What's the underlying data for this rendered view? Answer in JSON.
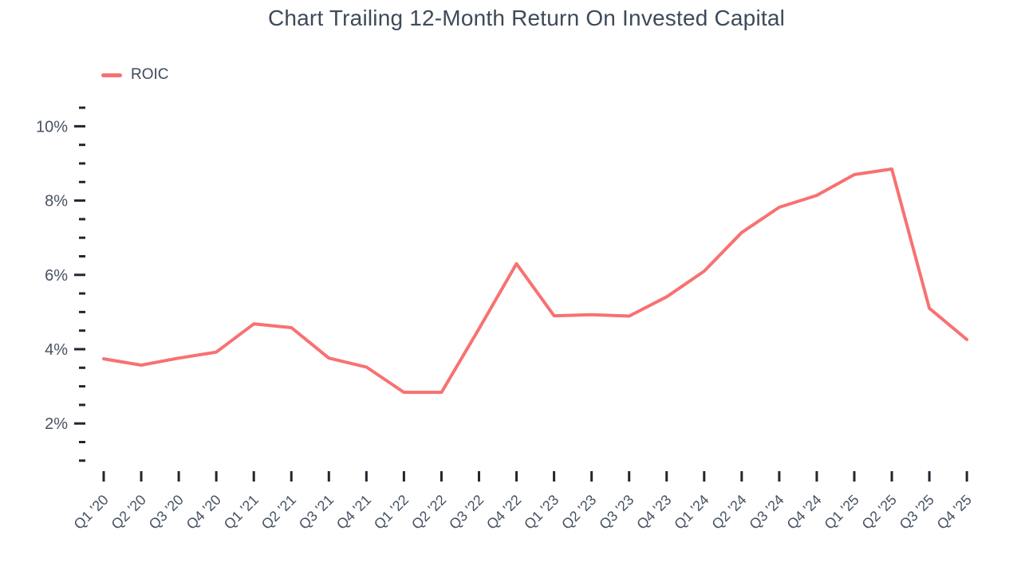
{
  "header": {
    "title": "Chart Trailing 12-Month Return On Invested Capital"
  },
  "legend": {
    "items": [
      {
        "label": "ROIC",
        "color": "#F87171"
      }
    ]
  },
  "colors": {
    "background": "#FFFFFF",
    "series_line": "#F87171",
    "title_text": "#3E4A59",
    "axis_label_text": "#475263",
    "tick_mark": "#212730"
  },
  "chart_data": {
    "type": "line",
    "title": "Chart Trailing 12-Month Return On Invested Capital",
    "xlabel": "",
    "ylabel": "",
    "grid": false,
    "legend_position": "top-left",
    "categories": [
      "Q1 '20",
      "Q2 '20",
      "Q3 '20",
      "Q4 '20",
      "Q1 '21",
      "Q2 '21",
      "Q3 '21",
      "Q4 '21",
      "Q1 '22",
      "Q2 '22",
      "Q3 '22",
      "Q4 '22",
      "Q1 '23",
      "Q2 '23",
      "Q3 '23",
      "Q4 '23",
      "Q1 '24",
      "Q2 '24",
      "Q3 '24",
      "Q4 '24",
      "Q1 '25",
      "Q2 '25",
      "Q3 '25",
      "Q4 '25"
    ],
    "series": [
      {
        "name": "ROIC",
        "color": "#F87171",
        "values": [
          3.74,
          3.57,
          3.76,
          3.92,
          4.68,
          4.58,
          3.76,
          3.52,
          2.84,
          2.84,
          4.55,
          6.3,
          4.9,
          4.93,
          4.89,
          5.41,
          6.1,
          7.14,
          7.82,
          8.14,
          8.7,
          8.85,
          5.1,
          4.26
        ]
      }
    ],
    "y_axis": {
      "min": 1,
      "max": 10.5,
      "minor_step": 0.5,
      "major_ticks": [
        2,
        4,
        6,
        8,
        10
      ],
      "tick_label_suffix": "%"
    }
  }
}
